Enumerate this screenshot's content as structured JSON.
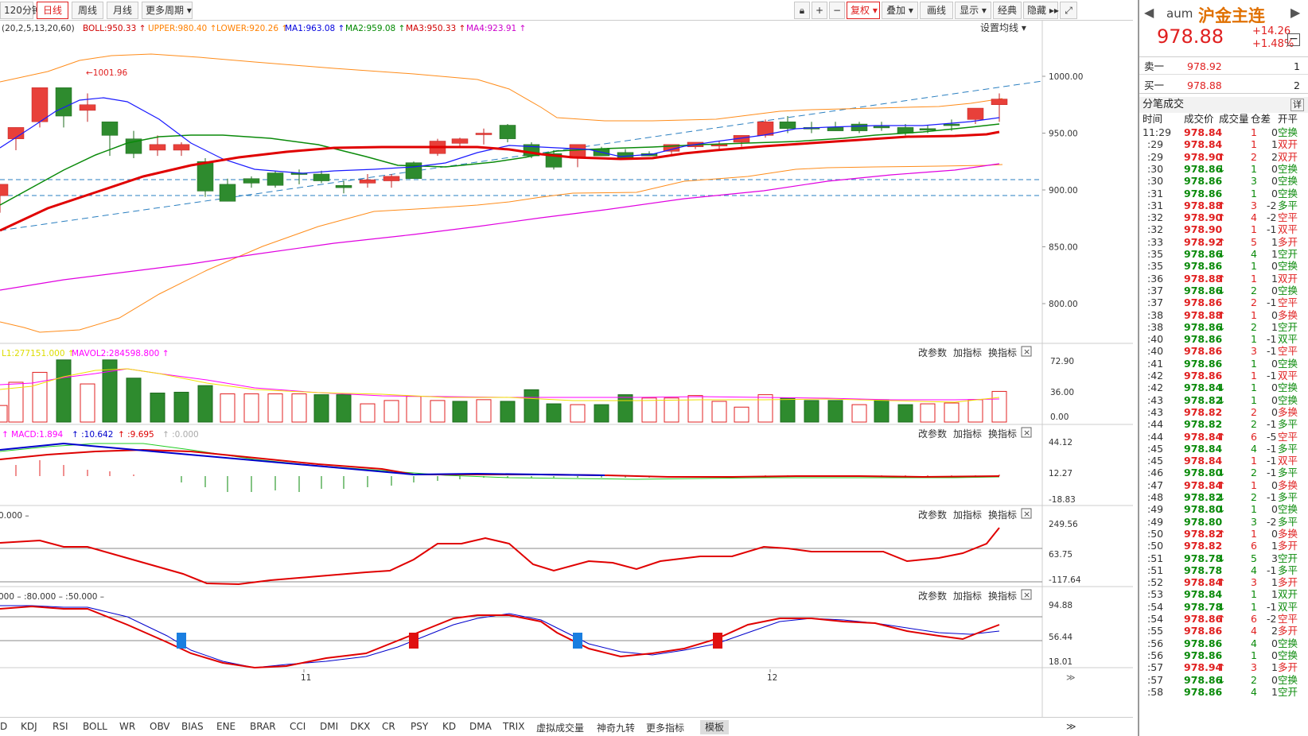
{
  "toolbar": {
    "periods": [
      "120分钟",
      "日线",
      "周线",
      "月线",
      "更多周期 ▾"
    ],
    "right": [
      "复权 ▾",
      "叠加 ▾",
      "画线",
      "显示 ▾",
      "经典",
      "隐藏 ▸▸"
    ]
  },
  "legend": {
    "params": "(20,2,5,13,20,60)",
    "items": [
      {
        "text": "BOLL:950.33",
        "color": "#d00000"
      },
      {
        "text": "UPPER:980.40",
        "color": "#ff8000"
      },
      {
        "text": "LOWER:920.26",
        "color": "#ff8000"
      },
      {
        "text": "MA1:963.08",
        "color": "#0000dd"
      },
      {
        "text": "MA2:959.08",
        "color": "#008800"
      },
      {
        "text": "MA3:950.33",
        "color": "#d00000"
      },
      {
        "text": "MA4:923.91",
        "color": "#cc00cc"
      }
    ],
    "settings": "设置均线 ▾"
  },
  "main_axis": [
    "1000.00",
    "950.00",
    "900.00",
    "850.00",
    "800.00"
  ],
  "annotation": "1001.96",
  "panel_buttons": [
    "改参数",
    "加指标",
    "换指标"
  ],
  "vol_legend": [
    {
      "text": "L1:277151.000",
      "color": "#dddd00"
    },
    {
      "text": "MAVOL2:284598.800",
      "color": "#ff00ff"
    }
  ],
  "vol_axis": [
    "72.90",
    "36.00",
    "0.00"
  ],
  "macd_legend": [
    {
      "text": "MACD:1.894",
      "color": "#ff00ff"
    },
    {
      "text": ":10.642",
      "color": "#0000cc"
    },
    {
      "text": ":9.695",
      "color": "#dd0000"
    },
    {
      "text": ":0.000",
      "color": "#aaaaaa"
    }
  ],
  "macd_axis": [
    "44.12",
    "12.27",
    "-18.83"
  ],
  "p3_legend": "0.000 –",
  "p3_axis": [
    "249.56",
    "63.75",
    "-117.64"
  ],
  "p4_legend": "000 – :80.000 – :50.000 –",
  "p4_axis": [
    "94.88",
    "56.44",
    "18.01"
  ],
  "date_labels": [
    "11",
    "12"
  ],
  "tabs": [
    "D",
    "KDJ",
    "RSI",
    "BOLL",
    "WR",
    "OBV",
    "BIAS",
    "ENE",
    "BRAR",
    "CCI",
    "DMI",
    "DKX",
    "CR",
    "PSY",
    "KD",
    "DMA",
    "TRIX",
    "虚拟成交量",
    "神奇九转",
    "更多指标",
    "模板"
  ],
  "quote": {
    "code": "aum",
    "name": "沪金主连",
    "price": "978.88",
    "change": "+14.26",
    "pct": "+1.48%",
    "sell_label": "卖一",
    "sell_price": "978.92",
    "sell_vol": "1",
    "buy_label": "买一",
    "buy_price": "978.88",
    "buy_vol": "2",
    "ticks_title": "分笔成交",
    "detail": "详",
    "headers": [
      "时间",
      "成交价",
      "成交量",
      "仓差",
      "开平"
    ]
  },
  "ticks": [
    [
      "11:29",
      "978.84",
      "",
      "1",
      "0",
      "空换",
      "r",
      "g"
    ],
    [
      ":29",
      "978.84",
      "",
      "1",
      "1",
      "双开",
      "r",
      "r"
    ],
    [
      ":29",
      "978.90",
      "↑",
      "2",
      "2",
      "双开",
      "r",
      "r"
    ],
    [
      ":30",
      "978.86",
      "↓",
      "1",
      "0",
      "空换",
      "g",
      "g"
    ],
    [
      ":30",
      "978.86",
      "",
      "3",
      "0",
      "空换",
      "g",
      "g"
    ],
    [
      ":31",
      "978.86",
      "",
      "1",
      "0",
      "空换",
      "g",
      "g"
    ],
    [
      ":31",
      "978.88",
      "↑",
      "3",
      "-2",
      "多平",
      "r",
      "g"
    ],
    [
      ":32",
      "978.90",
      "↑",
      "4",
      "-2",
      "空平",
      "r",
      "r"
    ],
    [
      ":32",
      "978.90",
      "",
      "1",
      "-1",
      "双平",
      "r",
      "r"
    ],
    [
      ":33",
      "978.92",
      "↑",
      "5",
      "1",
      "多开",
      "r",
      "r"
    ],
    [
      ":35",
      "978.86",
      "↓",
      "4",
      "1",
      "空开",
      "g",
      "g"
    ],
    [
      ":35",
      "978.86",
      "",
      "1",
      "0",
      "空换",
      "g",
      "g"
    ],
    [
      ":36",
      "978.88",
      "↑",
      "1",
      "1",
      "双开",
      "r",
      "r"
    ],
    [
      ":37",
      "978.86",
      "↓",
      "2",
      "0",
      "空换",
      "g",
      "g"
    ],
    [
      ":37",
      "978.86",
      "",
      "2",
      "-1",
      "空平",
      "r",
      "r"
    ],
    [
      ":38",
      "978.88",
      "↑",
      "1",
      "0",
      "多换",
      "r",
      "r"
    ],
    [
      ":38",
      "978.86",
      "↓",
      "2",
      "1",
      "空开",
      "g",
      "g"
    ],
    [
      ":40",
      "978.86",
      "",
      "1",
      "-1",
      "双平",
      "g",
      "g"
    ],
    [
      ":40",
      "978.86",
      "",
      "3",
      "-1",
      "空平",
      "r",
      "r"
    ],
    [
      ":41",
      "978.86",
      "",
      "1",
      "0",
      "空换",
      "g",
      "g"
    ],
    [
      ":42",
      "978.86",
      "",
      "1",
      "-1",
      "双平",
      "r",
      "r"
    ],
    [
      ":42",
      "978.84",
      "↓",
      "1",
      "0",
      "空换",
      "g",
      "g"
    ],
    [
      ":43",
      "978.82",
      "↓",
      "1",
      "0",
      "空换",
      "g",
      "g"
    ],
    [
      ":43",
      "978.82",
      "",
      "2",
      "0",
      "多换",
      "r",
      "r"
    ],
    [
      ":44",
      "978.82",
      "",
      "2",
      "-1",
      "多平",
      "g",
      "g"
    ],
    [
      ":44",
      "978.84",
      "↑",
      "6",
      "-5",
      "空平",
      "r",
      "r"
    ],
    [
      ":45",
      "978.84",
      "",
      "4",
      "-1",
      "多平",
      "g",
      "g"
    ],
    [
      ":45",
      "978.84",
      "",
      "1",
      "-1",
      "双平",
      "r",
      "r"
    ],
    [
      ":46",
      "978.80",
      "↓",
      "2",
      "-1",
      "多平",
      "g",
      "g"
    ],
    [
      ":47",
      "978.84",
      "↑",
      "1",
      "0",
      "多换",
      "r",
      "r"
    ],
    [
      ":48",
      "978.82",
      "↓",
      "2",
      "-1",
      "多平",
      "g",
      "g"
    ],
    [
      ":49",
      "978.80",
      "↓",
      "1",
      "0",
      "空换",
      "g",
      "g"
    ],
    [
      ":49",
      "978.80",
      "",
      "3",
      "-2",
      "多平",
      "g",
      "g"
    ],
    [
      ":50",
      "978.82",
      "↑",
      "1",
      "0",
      "多换",
      "r",
      "r"
    ],
    [
      ":50",
      "978.82",
      "",
      "6",
      "1",
      "多开",
      "r",
      "r"
    ],
    [
      ":51",
      "978.78",
      "↓",
      "5",
      "3",
      "空开",
      "g",
      "g"
    ],
    [
      ":51",
      "978.78",
      "",
      "4",
      "-1",
      "多平",
      "g",
      "g"
    ],
    [
      ":52",
      "978.84",
      "↑",
      "3",
      "1",
      "多开",
      "r",
      "r"
    ],
    [
      ":53",
      "978.84",
      "",
      "1",
      "1",
      "双开",
      "g",
      "g"
    ],
    [
      ":54",
      "978.78",
      "↓",
      "1",
      "-1",
      "双平",
      "g",
      "g"
    ],
    [
      ":54",
      "978.86",
      "↑",
      "6",
      "-2",
      "空平",
      "r",
      "r"
    ],
    [
      ":55",
      "978.86",
      "",
      "4",
      "2",
      "多开",
      "r",
      "r"
    ],
    [
      ":56",
      "978.86",
      "",
      "4",
      "0",
      "空换",
      "g",
      "g"
    ],
    [
      ":56",
      "978.86",
      "",
      "1",
      "0",
      "空换",
      "g",
      "g"
    ],
    [
      ":57",
      "978.94",
      "↑",
      "3",
      "1",
      "多开",
      "r",
      "r"
    ],
    [
      ":57",
      "978.86",
      "↓",
      "2",
      "0",
      "空换",
      "g",
      "g"
    ],
    [
      ":58",
      "978.86",
      "",
      "4",
      "1",
      "空开",
      "g",
      "g"
    ]
  ],
  "colors": {
    "up": "#e8403a",
    "down": "#2e8b2e",
    "boll": "#ff8c1a",
    "ma1": "#1a1aff",
    "ma2": "#0a8a0a",
    "ma3": "#e00000",
    "ma4": "#e000e0"
  }
}
